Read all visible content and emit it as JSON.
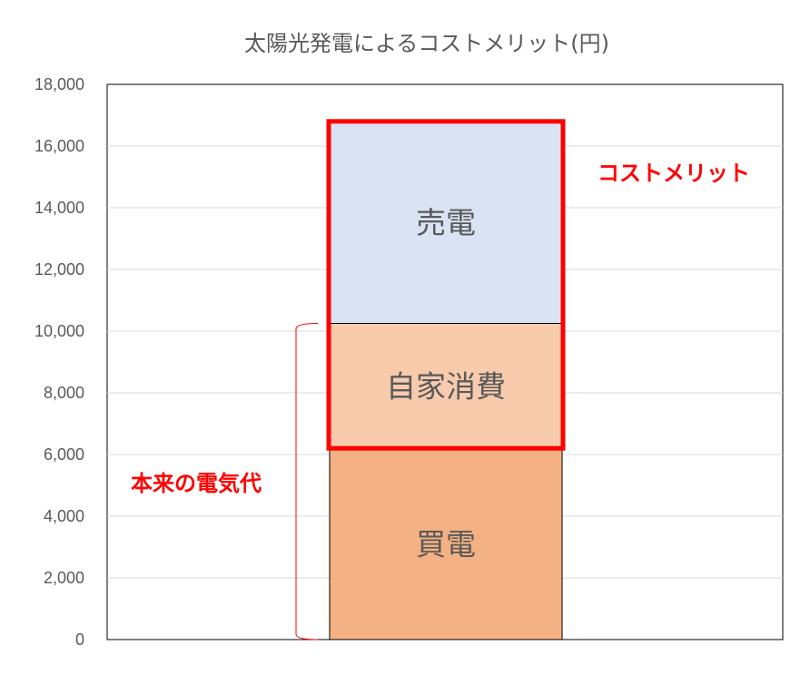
{
  "chart_data": {
    "type": "bar",
    "stacked": true,
    "title": "太陽光発電によるコストメリット(円)",
    "xlabel": "",
    "ylabel": "",
    "ylim": [
      0,
      18000
    ],
    "y_ticks": [
      0,
      2000,
      4000,
      6000,
      8000,
      10000,
      12000,
      14000,
      16000,
      18000
    ],
    "y_tick_labels": [
      "0",
      "2,000",
      "4,000",
      "6,000",
      "8,000",
      "10,000",
      "12,000",
      "14,000",
      "16,000",
      "18,000"
    ],
    "grid": true,
    "legend": "none",
    "categories": [
      ""
    ],
    "series": [
      {
        "name": "買電",
        "values": [
          6200
        ],
        "color": "#F4B183"
      },
      {
        "name": "自家消費",
        "values": [
          4050
        ],
        "color": "#F8CBAD"
      },
      {
        "name": "売電",
        "values": [
          6550
        ],
        "color": "#DAE3F3"
      }
    ],
    "annotations": {
      "cost_merit": {
        "label": "コストメリット",
        "color": "#FF0000",
        "from": 6200,
        "to": 16800
      },
      "original_bill": {
        "label": "本来の電気代",
        "color": "#FF0000",
        "from": 0,
        "to": 10250
      }
    }
  }
}
